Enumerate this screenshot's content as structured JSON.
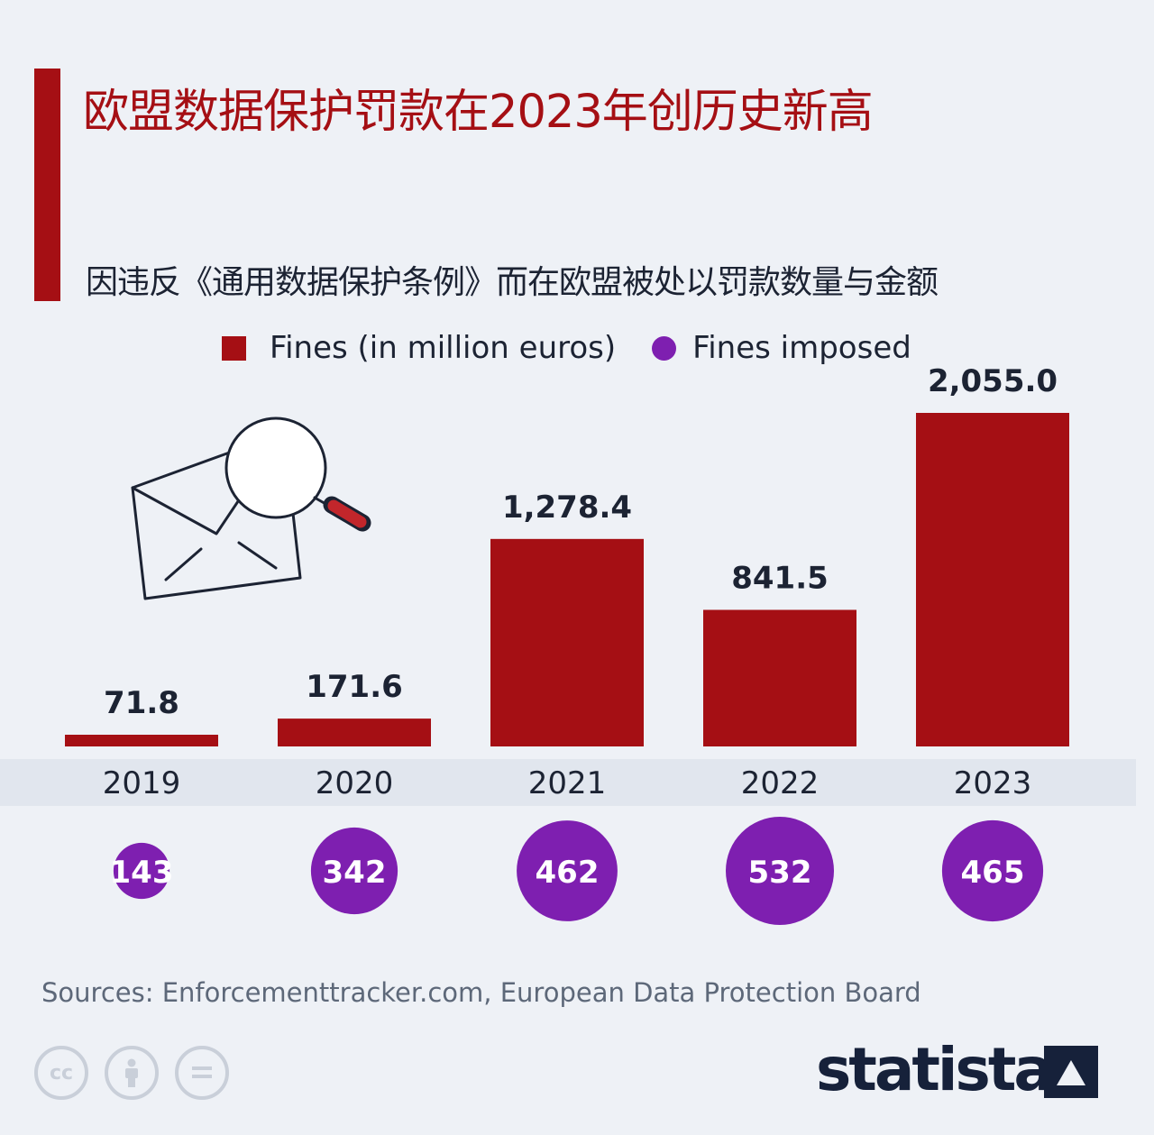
{
  "header": {
    "title": "欧盟数据保护罚款在2023年创历史新高",
    "subtitle": "因违反《通用数据保护条例》而在欧盟被处以罚款数量与金额"
  },
  "legend": {
    "fines_label": "Fines (in million euros)",
    "imposed_label": "Fines imposed"
  },
  "chart_data": {
    "type": "bar",
    "categories": [
      "2019",
      "2020",
      "2021",
      "2022",
      "2023"
    ],
    "series": [
      {
        "name": "Fines (in million euros)",
        "values": [
          71.8,
          171.6,
          1278.4,
          841.5,
          2055.0
        ],
        "labels": [
          "71.8",
          "171.6",
          "1,278.4",
          "841.5",
          "2,055.0"
        ],
        "color": "#a50f14"
      },
      {
        "name": "Fines imposed",
        "values": [
          143,
          342,
          462,
          532,
          465
        ],
        "labels": [
          "143",
          "342",
          "462",
          "532",
          "465"
        ],
        "color": "#7e1fb0"
      }
    ],
    "ylim": [
      0,
      2055.0
    ],
    "grid": false,
    "legend_position": "top"
  },
  "footer": {
    "sources": "Sources: Enforcementtracker.com, European Data Protection Board",
    "brand": "statista",
    "license_icons": [
      "cc-icon",
      "attribution-icon",
      "no-derivatives-icon"
    ]
  },
  "colors": {
    "accent": "#a50f14",
    "bubble": "#7e1fb0",
    "text": "#1c2333",
    "background": "#eef1f6"
  }
}
